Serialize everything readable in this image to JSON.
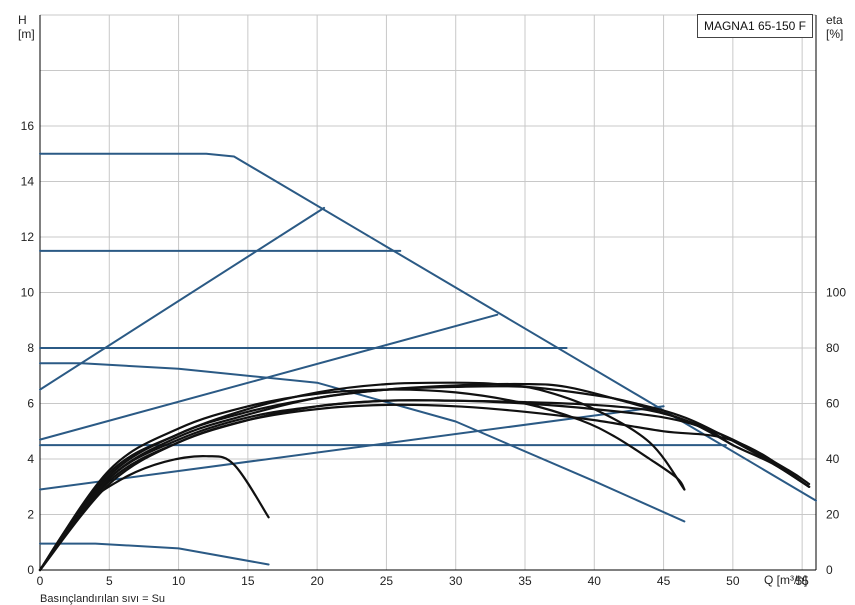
{
  "model_label": "MAGNA1 65-150 F",
  "footnote": "Basınçlandırılan sıvı = Su",
  "chart_data": {
    "type": "line",
    "title": "",
    "xlabel": "Q [m³/h]",
    "ylabel_left": [
      "H",
      "[m]"
    ],
    "ylabel_right": [
      "eta",
      "[%]"
    ],
    "xlim": [
      0,
      56
    ],
    "ylim_left": [
      0,
      20
    ],
    "ylim_right": [
      0,
      200
    ],
    "x_ticks": [
      0,
      5,
      10,
      15,
      20,
      25,
      30,
      35,
      40,
      45,
      50,
      55
    ],
    "y_ticks_left": [
      0,
      2,
      4,
      6,
      8,
      10,
      12,
      14,
      16
    ],
    "y_ticks_right": [
      0,
      20,
      40,
      60,
      80,
      100
    ],
    "grid": true,
    "colors": {
      "head": "#2b5a85",
      "efficiency": "#111111",
      "grid": "#c8c8c8"
    },
    "series": [
      {
        "kind": "head",
        "points": [
          [
            0,
            15
          ],
          [
            12,
            15
          ],
          [
            14,
            14.9
          ],
          [
            56,
            2.5
          ]
        ]
      },
      {
        "kind": "head",
        "points": [
          [
            0,
            11.5
          ],
          [
            26,
            11.5
          ]
        ]
      },
      {
        "kind": "head",
        "points": [
          [
            0,
            8.0
          ],
          [
            38,
            8.0
          ]
        ]
      },
      {
        "kind": "head",
        "points": [
          [
            0,
            4.5
          ],
          [
            49.5,
            4.5
          ]
        ]
      },
      {
        "kind": "head",
        "points": [
          [
            0,
            6.5
          ],
          [
            20.5,
            13.05
          ]
        ]
      },
      {
        "kind": "head",
        "points": [
          [
            0,
            4.7
          ],
          [
            33,
            9.2
          ]
        ]
      },
      {
        "kind": "head",
        "points": [
          [
            0,
            2.9
          ],
          [
            45,
            5.9
          ]
        ]
      },
      {
        "kind": "head",
        "points": [
          [
            0,
            7.45
          ],
          [
            3,
            7.45
          ],
          [
            10,
            7.25
          ],
          [
            20,
            6.75
          ],
          [
            30,
            5.35
          ],
          [
            40,
            3.2
          ],
          [
            46.5,
            1.75
          ]
        ]
      },
      {
        "kind": "head",
        "points": [
          [
            0,
            0.95
          ],
          [
            4,
            0.95
          ],
          [
            10,
            0.78
          ],
          [
            16.5,
            0.2
          ]
        ]
      },
      {
        "kind": "efficiency",
        "points": [
          [
            0,
            0
          ],
          [
            3,
            22
          ],
          [
            6,
            33
          ],
          [
            9,
            39
          ],
          [
            12,
            41
          ],
          [
            14,
            38
          ],
          [
            16.5,
            19
          ]
        ]
      },
      {
        "kind": "efficiency",
        "points": [
          [
            0,
            0
          ],
          [
            5,
            31
          ],
          [
            10,
            46
          ],
          [
            15,
            54
          ],
          [
            20,
            58
          ],
          [
            25,
            59.5
          ],
          [
            30,
            59
          ],
          [
            35,
            57
          ],
          [
            40,
            54
          ],
          [
            45,
            50
          ],
          [
            49,
            48
          ],
          [
            52,
            42
          ],
          [
            55.5,
            30
          ]
        ]
      },
      {
        "kind": "efficiency",
        "points": [
          [
            0,
            0
          ],
          [
            5,
            32
          ],
          [
            10,
            46
          ],
          [
            15,
            54
          ],
          [
            20,
            59
          ],
          [
            25,
            61
          ],
          [
            30,
            61
          ],
          [
            35,
            60
          ],
          [
            40,
            58
          ],
          [
            45,
            55
          ],
          [
            48,
            51
          ],
          [
            50,
            45
          ],
          [
            53,
            38
          ],
          [
            55.5,
            30
          ]
        ]
      },
      {
        "kind": "efficiency",
        "points": [
          [
            0,
            0
          ],
          [
            5,
            33
          ],
          [
            10,
            48
          ],
          [
            15,
            56
          ],
          [
            20,
            62
          ],
          [
            25,
            65
          ],
          [
            30,
            66
          ],
          [
            35,
            66
          ],
          [
            40,
            63
          ],
          [
            43,
            60
          ],
          [
            47,
            54
          ],
          [
            52,
            41
          ],
          [
            55.5,
            30
          ]
        ]
      },
      {
        "kind": "efficiency",
        "points": [
          [
            0,
            0
          ],
          [
            5,
            34
          ],
          [
            10,
            49
          ],
          [
            15,
            57
          ],
          [
            20,
            62
          ],
          [
            25,
            65
          ],
          [
            30,
            66.5
          ],
          [
            35,
            67
          ],
          [
            38,
            66
          ],
          [
            42,
            61
          ],
          [
            46,
            55
          ],
          [
            50,
            47
          ],
          [
            54,
            36
          ],
          [
            55.5,
            31
          ]
        ]
      },
      {
        "kind": "efficiency",
        "points": [
          [
            0,
            0
          ],
          [
            5,
            35
          ],
          [
            10,
            49
          ],
          [
            15,
            58
          ],
          [
            20,
            64
          ],
          [
            25,
            67
          ],
          [
            30,
            67.5
          ],
          [
            33,
            67
          ],
          [
            36,
            65
          ],
          [
            40,
            58
          ],
          [
            44,
            46
          ],
          [
            46.5,
            29
          ]
        ]
      },
      {
        "kind": "efficiency",
        "points": [
          [
            0,
            0
          ],
          [
            5,
            36
          ],
          [
            10,
            51
          ],
          [
            15,
            59
          ],
          [
            20,
            63.5
          ],
          [
            25,
            65
          ],
          [
            30,
            64
          ],
          [
            35,
            60
          ],
          [
            39,
            54
          ],
          [
            41.5,
            48
          ],
          [
            44,
            40
          ],
          [
            46,
            33
          ],
          [
            46.5,
            29
          ]
        ]
      },
      {
        "kind": "efficiency",
        "points": [
          [
            0,
            0
          ],
          [
            5,
            33
          ],
          [
            10,
            47
          ],
          [
            15,
            55
          ],
          [
            20,
            59
          ],
          [
            25,
            61
          ],
          [
            30,
            61
          ],
          [
            35,
            60.5
          ],
          [
            40,
            59.5
          ],
          [
            44,
            57.5
          ],
          [
            47,
            53
          ],
          [
            50,
            45
          ]
        ]
      }
    ]
  }
}
